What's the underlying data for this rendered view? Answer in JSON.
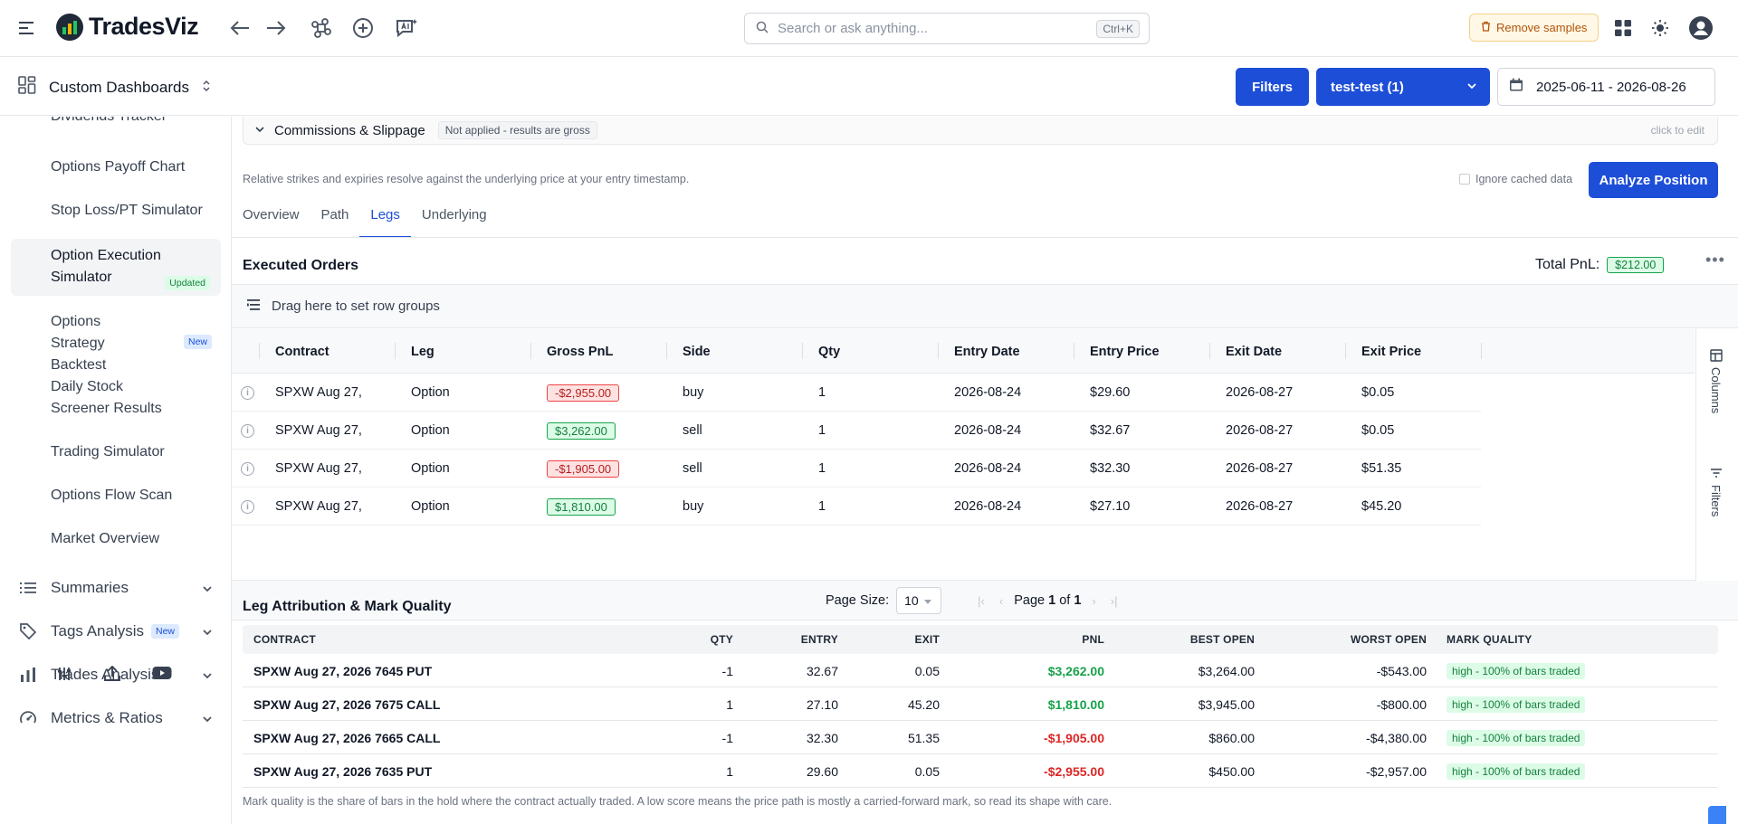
{
  "app": {
    "brand": "TradesViz",
    "search_placeholder": "Search or ask anything...",
    "search_shortcut": "Ctrl+K",
    "remove_samples_label": "Remove samples"
  },
  "toolbar": {
    "dashboard_label": "Custom Dashboards",
    "filters_label": "Filters",
    "account_label": "test-test (1)",
    "date_range": "2025-06-11 - 2026-08-26"
  },
  "sidebar": {
    "items": [
      {
        "label": "Dividends Tracker"
      },
      {
        "label": "Options Payoff Chart"
      },
      {
        "label": "Stop Loss/PT Simulator"
      },
      {
        "label": "Option Execution Simulator",
        "badge": "Updated"
      },
      {
        "label": "Options Strategy Backtest",
        "badge": "New"
      },
      {
        "label": "Daily Stock Screener Results"
      },
      {
        "label": "Trading Simulator"
      },
      {
        "label": "Options Flow Scan"
      },
      {
        "label": "Market Overview"
      }
    ],
    "groups": [
      {
        "label": "Summaries"
      },
      {
        "label": "Tags Analysis",
        "badge": "New"
      },
      {
        "label": "Trades Analysis"
      },
      {
        "label": "Metrics & Ratios"
      }
    ]
  },
  "commissions": {
    "title": "Commissions & Slippage",
    "status": "Not applied - results are gross",
    "edit_hint": "click to edit"
  },
  "analysis": {
    "helper_text": "Relative strikes and expiries resolve against the underlying price at your entry timestamp.",
    "ignore_cache_label": "Ignore cached data",
    "analyze_label": "Analyze Position"
  },
  "tabs": [
    {
      "label": "Overview"
    },
    {
      "label": "Path"
    },
    {
      "label": "Legs",
      "active": true
    },
    {
      "label": "Underlying"
    }
  ],
  "executed_orders": {
    "title": "Executed Orders",
    "total_pnl_label": "Total PnL:",
    "total_pnl_value": "$212.00",
    "group_drop_label": "Drag here to set row groups",
    "columns": [
      "Contract",
      "Leg",
      "Gross PnL",
      "Side",
      "Qty",
      "Entry Date",
      "Entry Price",
      "Exit Date",
      "Exit Price"
    ],
    "rows": [
      {
        "contract": "SPXW Aug 27,",
        "leg": "Option",
        "gross_pnl": "-$2,955.00",
        "positive": false,
        "side": "buy",
        "qty": "1",
        "entry_date": "2026-08-24",
        "entry_price": "$29.60",
        "exit_date": "2026-08-27",
        "exit_price": "$0.05"
      },
      {
        "contract": "SPXW Aug 27,",
        "leg": "Option",
        "gross_pnl": "$3,262.00",
        "positive": true,
        "side": "sell",
        "qty": "1",
        "entry_date": "2026-08-24",
        "entry_price": "$32.67",
        "exit_date": "2026-08-27",
        "exit_price": "$0.05"
      },
      {
        "contract": "SPXW Aug 27,",
        "leg": "Option",
        "gross_pnl": "-$1,905.00",
        "positive": false,
        "side": "sell",
        "qty": "1",
        "entry_date": "2026-08-24",
        "entry_price": "$32.30",
        "exit_date": "2026-08-27",
        "exit_price": "$51.35"
      },
      {
        "contract": "SPXW Aug 27,",
        "leg": "Option",
        "gross_pnl": "$1,810.00",
        "positive": true,
        "side": "buy",
        "qty": "1",
        "entry_date": "2026-08-24",
        "entry_price": "$27.10",
        "exit_date": "2026-08-27",
        "exit_price": "$45.20"
      }
    ],
    "side_panel": {
      "columns_label": "Columns",
      "filters_label": "Filters"
    },
    "pager": {
      "page_size_label": "Page Size:",
      "page_size": "10",
      "page_word": "Page",
      "page": "1",
      "of_word": "of",
      "total_pages": "1"
    }
  },
  "leg_attribution": {
    "title": "Leg Attribution & Mark Quality",
    "columns": [
      "CONTRACT",
      "QTY",
      "ENTRY",
      "EXIT",
      "PNL",
      "BEST OPEN",
      "WORST OPEN",
      "MARK QUALITY"
    ],
    "rows": [
      {
        "contract": "SPXW Aug 27, 2026 7645 PUT",
        "qty": "-1",
        "entry": "32.67",
        "exit": "0.05",
        "pnl": "$3,262.00",
        "positive": true,
        "best_open": "$3,264.00",
        "worst_open": "-$543.00",
        "mark_quality": "high - 100% of bars traded"
      },
      {
        "contract": "SPXW Aug 27, 2026 7675 CALL",
        "qty": "1",
        "entry": "27.10",
        "exit": "45.20",
        "pnl": "$1,810.00",
        "positive": true,
        "best_open": "$3,945.00",
        "worst_open": "-$800.00",
        "mark_quality": "high - 100% of bars traded"
      },
      {
        "contract": "SPXW Aug 27, 2026 7665 CALL",
        "qty": "-1",
        "entry": "32.30",
        "exit": "51.35",
        "pnl": "-$1,905.00",
        "positive": false,
        "best_open": "$860.00",
        "worst_open": "-$4,380.00",
        "mark_quality": "high - 100% of bars traded"
      },
      {
        "contract": "SPXW Aug 27, 2026 7635 PUT",
        "qty": "1",
        "entry": "29.60",
        "exit": "0.05",
        "pnl": "-$2,955.00",
        "positive": false,
        "best_open": "$450.00",
        "worst_open": "-$2,957.00",
        "mark_quality": "high - 100% of bars traded"
      }
    ],
    "footnote": "Mark quality is the share of bars in the hold where the contract actually traded. A low score means the price path is mostly a carried-forward mark, so read its shape with care."
  },
  "colors": {
    "accent": "#1d4ed8",
    "positive": "#16a34a",
    "negative": "#dc2626"
  }
}
